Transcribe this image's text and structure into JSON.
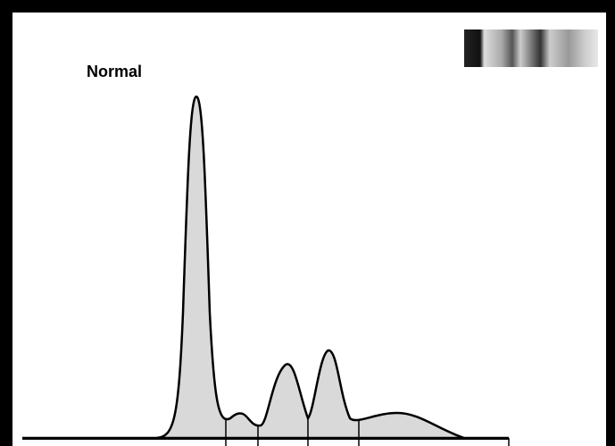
{
  "title": "Normal"
}
